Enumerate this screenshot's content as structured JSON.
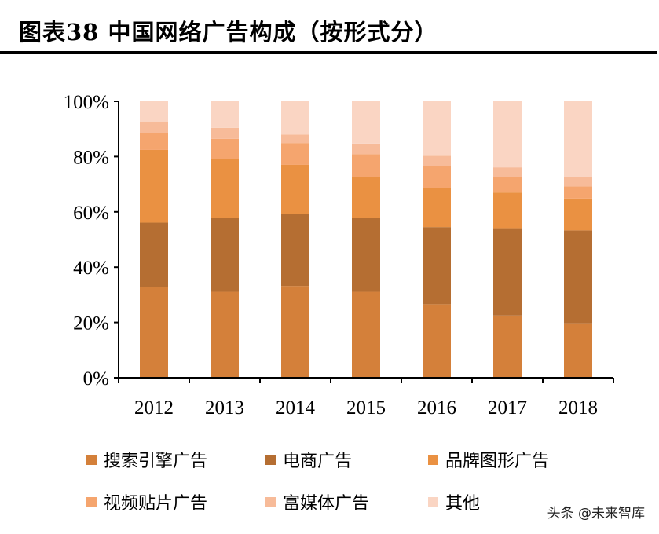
{
  "title": "图表38 中国网络广告构成（按形式分）",
  "watermark": "头条 @未来智库",
  "chart_data": {
    "type": "bar",
    "stacked": true,
    "title": "图表38 中国网络广告构成（按形式分）",
    "xlabel": "",
    "ylabel": "",
    "ylim": [
      0,
      100
    ],
    "yticks": [
      "0%",
      "20%",
      "40%",
      "60%",
      "80%",
      "100%"
    ],
    "categories": [
      "2012",
      "2013",
      "2014",
      "2015",
      "2016",
      "2017",
      "2018"
    ],
    "grid": false,
    "legend_position": "bottom",
    "series": [
      {
        "name": "搜索引擎广告",
        "color": "#D4803A",
        "values": [
          32.8,
          31.1,
          33.2,
          31.1,
          26.6,
          22.5,
          19.7
        ]
      },
      {
        "name": "电商广告",
        "color": "#B56E32",
        "values": [
          23.3,
          26.8,
          26.0,
          26.8,
          27.9,
          31.6,
          33.6
        ]
      },
      {
        "name": "品牌图形广告",
        "color": "#EA9142",
        "values": [
          26.3,
          21.2,
          17.8,
          14.8,
          14.0,
          12.9,
          11.5
        ]
      },
      {
        "name": "视频贴片广告",
        "color": "#F5A56E",
        "values": [
          6.2,
          7.3,
          7.9,
          8.2,
          8.2,
          5.6,
          4.4
        ]
      },
      {
        "name": "富媒体广告",
        "color": "#F7BB99",
        "values": [
          4.1,
          4.0,
          3.1,
          3.8,
          3.6,
          3.5,
          3.4
        ]
      },
      {
        "name": "其他",
        "color": "#FAD5C3",
        "values": [
          7.3,
          9.6,
          12.0,
          15.3,
          19.7,
          23.9,
          27.4
        ]
      }
    ]
  }
}
